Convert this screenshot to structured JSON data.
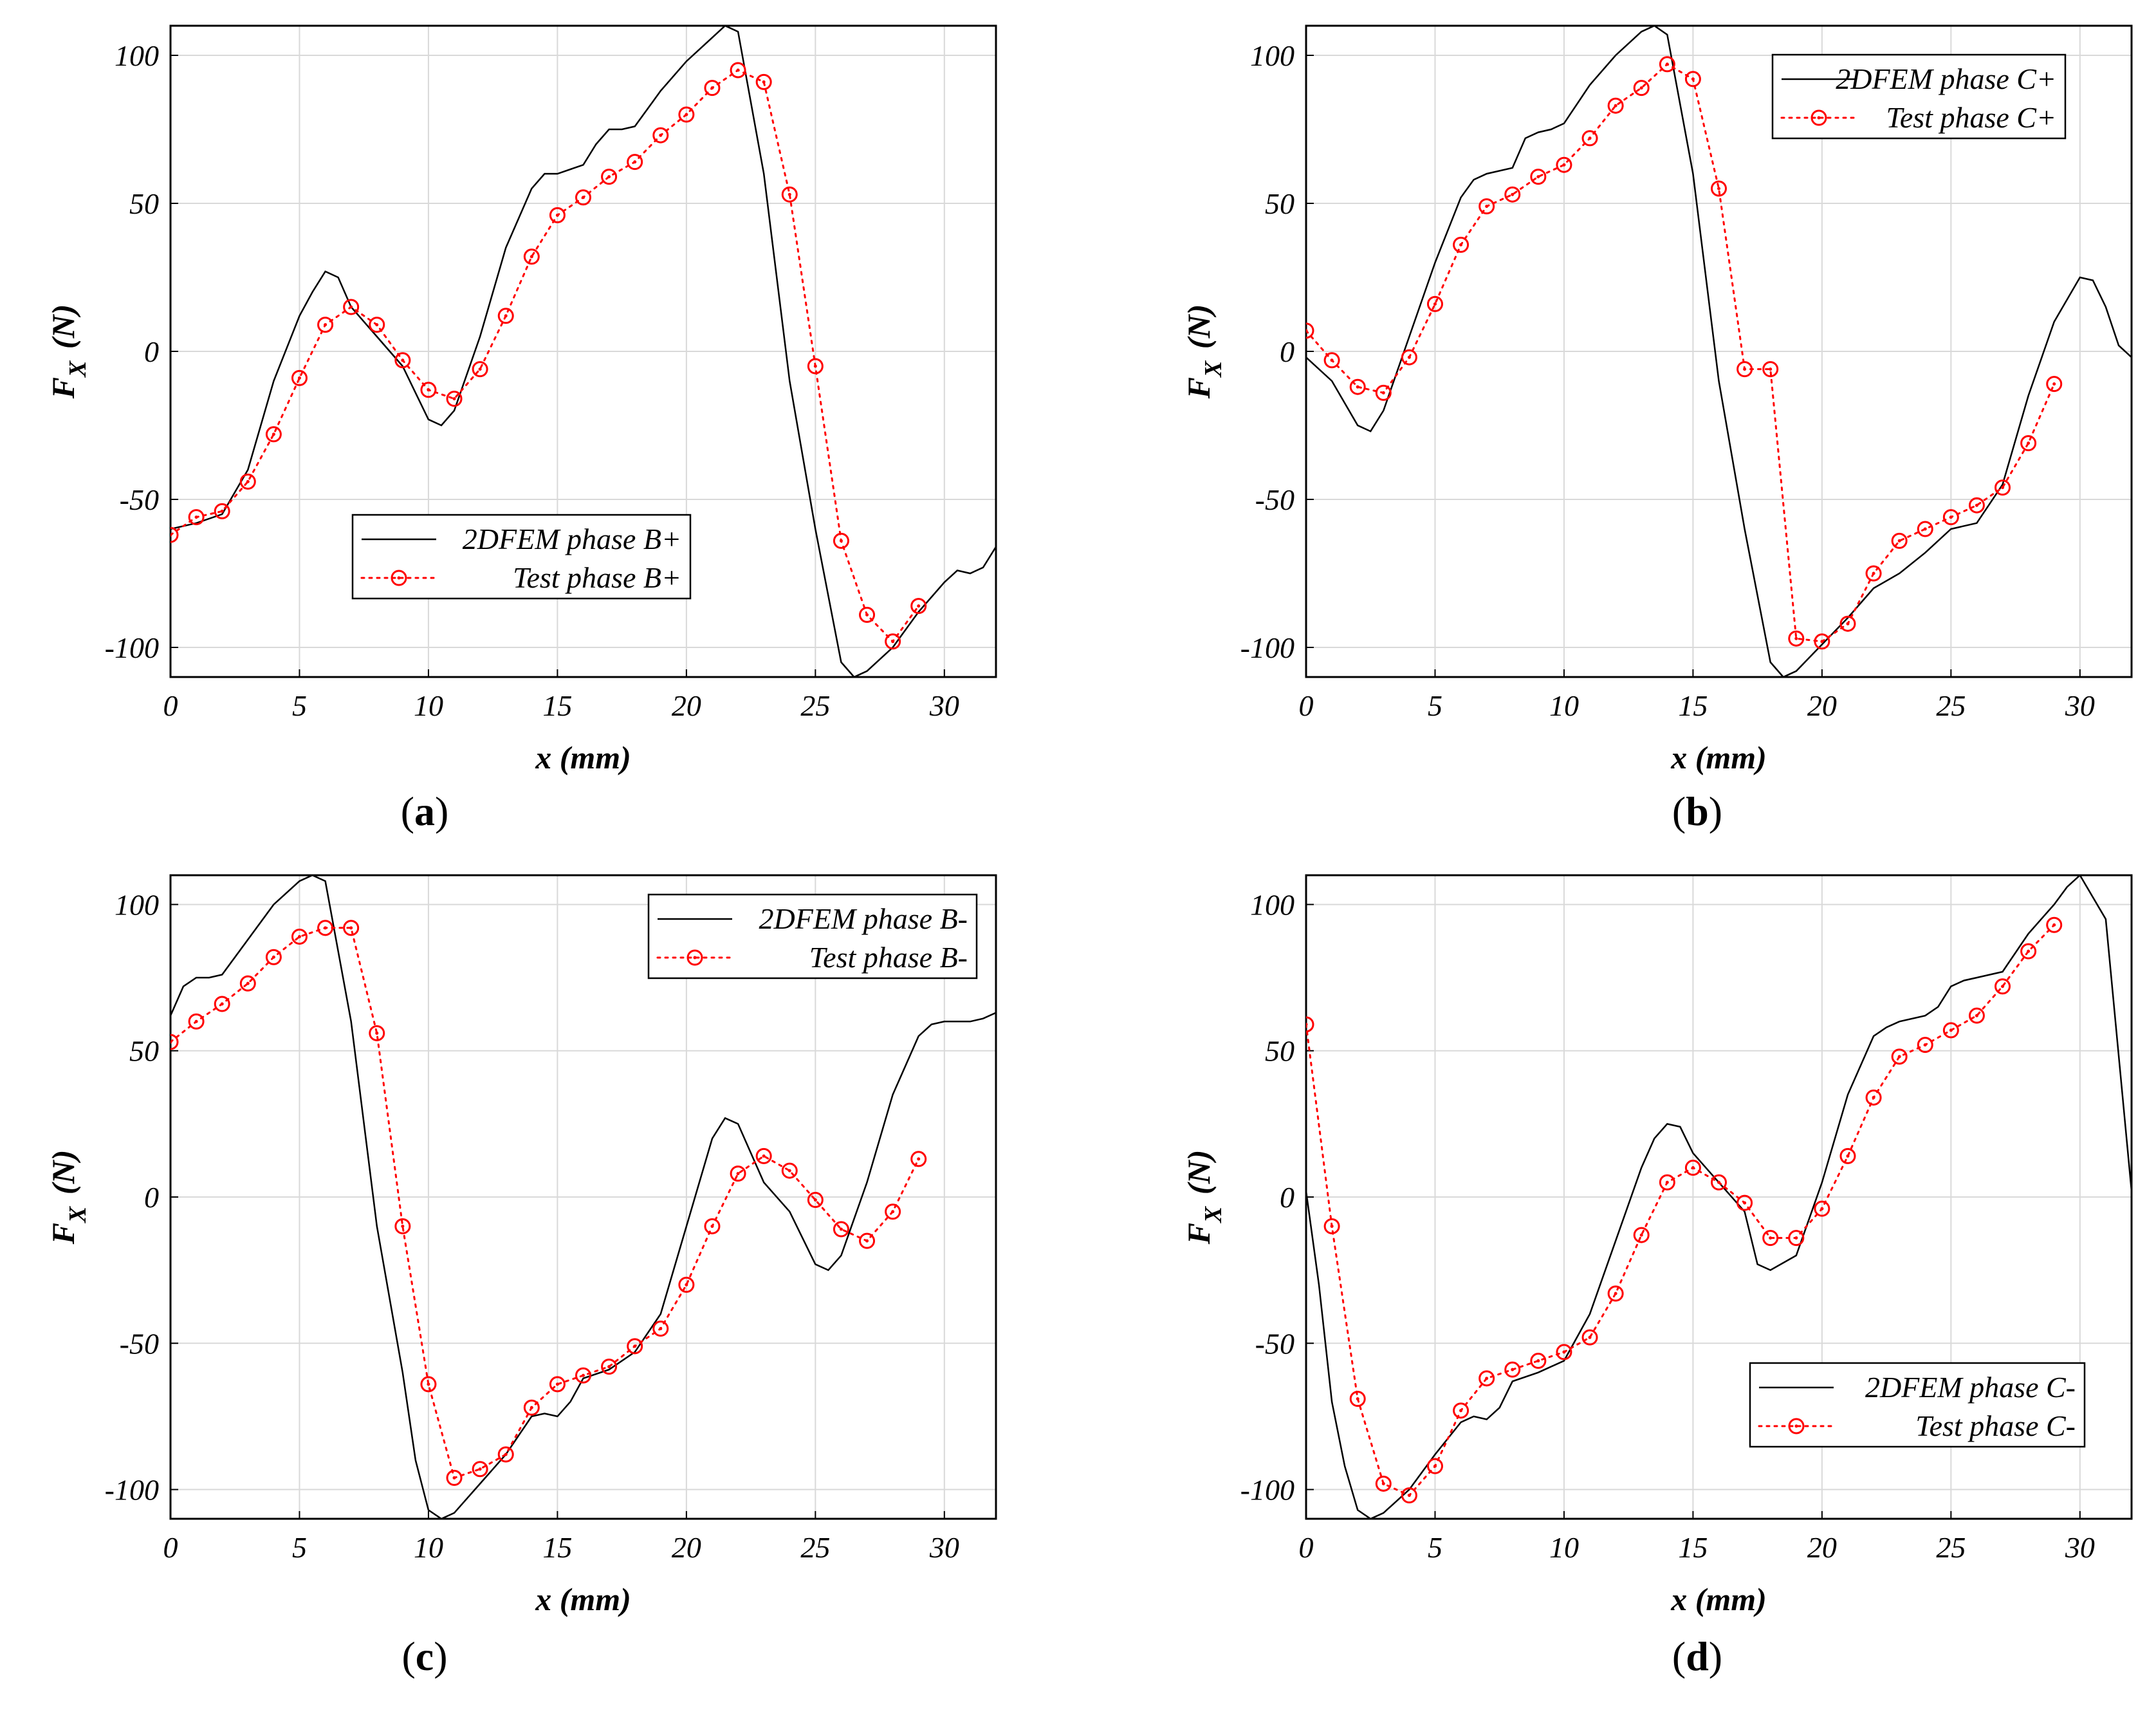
{
  "figure": {
    "width_label": "Fx vs x force comparison"
  },
  "colors": {
    "fem": "#000000",
    "test": "#ff0000",
    "grid": "#d9d9d9"
  },
  "chart_data": [
    {
      "type": "line",
      "panel_label": "(a)",
      "panel_letter": "a",
      "xlabel": "x (mm)",
      "ylabel_main": "F",
      "ylabel_sub": "X",
      "ylabel_unit": "(N)",
      "xlim": [
        0,
        32
      ],
      "ylim": [
        -110,
        110
      ],
      "xticks": [
        0,
        5,
        10,
        15,
        20,
        25,
        30
      ],
      "yticks": [
        -100,
        -50,
        0,
        50,
        100
      ],
      "ytick_labels": [
        "-100",
        "-50",
        "0",
        "50",
        "100"
      ],
      "legend_position": "lower-left-center",
      "series": [
        {
          "name": "2DFEM phase B+",
          "style": "solid",
          "x": [
            0,
            1,
            2,
            3,
            4,
            5,
            5.5,
            6,
            6.5,
            7,
            8,
            9,
            10,
            10.5,
            11,
            12,
            13,
            14,
            14.5,
            15,
            16,
            16.5,
            17,
            17.5,
            18,
            19,
            20,
            21,
            21.5,
            22,
            23,
            24,
            25,
            26,
            26.5,
            27,
            28,
            29,
            30,
            30.5,
            31,
            31.5,
            32
          ],
          "y": [
            -60,
            -58,
            -55,
            -40,
            -10,
            12,
            20,
            27,
            25,
            15,
            5,
            -5,
            -23,
            -25,
            -20,
            5,
            35,
            55,
            60,
            60,
            63,
            70,
            75,
            75,
            76,
            88,
            98,
            106,
            110,
            108,
            60,
            -10,
            -60,
            -105,
            -110,
            -108,
            -100,
            -88,
            -78,
            -74,
            -75,
            -73,
            -66
          ]
        },
        {
          "name": "Test phase B+",
          "style": "dotted-circle",
          "x": [
            0,
            1,
            2,
            3,
            4,
            5,
            6,
            7,
            8,
            9,
            10,
            11,
            12,
            13,
            14,
            15,
            16,
            17,
            18,
            19,
            20,
            21,
            22,
            23,
            24,
            25,
            26,
            27,
            28,
            29
          ],
          "y": [
            -62,
            -56,
            -54,
            -44,
            -28,
            -9,
            9,
            15,
            9,
            -3,
            -13,
            -16,
            -6,
            12,
            32,
            46,
            52,
            59,
            64,
            73,
            80,
            89,
            95,
            91,
            53,
            -5,
            -64,
            -89,
            -98,
            -86
          ]
        }
      ]
    },
    {
      "type": "line",
      "panel_label": "(b)",
      "panel_letter": "b",
      "xlabel": "x (mm)",
      "ylabel_main": "F",
      "ylabel_sub": "X",
      "ylabel_unit": "(N)",
      "xlim": [
        0,
        32
      ],
      "ylim": [
        -110,
        110
      ],
      "xticks": [
        0,
        5,
        10,
        15,
        20,
        25,
        30
      ],
      "yticks": [
        -100,
        -50,
        0,
        50,
        100
      ],
      "ytick_labels": [
        "-100",
        "-50",
        "0",
        "50",
        "100"
      ],
      "legend_position": "top-right",
      "series": [
        {
          "name": "2DFEM phase C+",
          "style": "solid",
          "x": [
            0,
            1,
            2,
            2.5,
            3,
            4,
            5,
            6,
            6.5,
            7,
            8,
            8.5,
            9,
            9.5,
            10,
            11,
            12,
            13,
            13.5,
            14,
            15,
            16,
            17,
            18,
            18.5,
            19,
            20,
            21,
            22,
            23,
            24,
            25,
            26,
            27,
            28,
            29,
            30,
            30.5,
            31,
            31.5,
            32
          ],
          "y": [
            -2,
            -10,
            -25,
            -27,
            -20,
            5,
            30,
            52,
            58,
            60,
            62,
            72,
            74,
            75,
            77,
            90,
            100,
            108,
            110,
            107,
            60,
            -10,
            -60,
            -105,
            -110,
            -108,
            -99,
            -90,
            -80,
            -75,
            -68,
            -60,
            -58,
            -45,
            -15,
            10,
            25,
            24,
            15,
            2,
            -2
          ]
        },
        {
          "name": "Test phase C+",
          "style": "dotted-circle",
          "x": [
            0,
            1,
            2,
            3,
            4,
            5,
            6,
            7,
            8,
            9,
            10,
            11,
            12,
            13,
            14,
            15,
            16,
            17,
            18,
            19,
            20,
            21,
            22,
            23,
            24,
            25,
            26,
            27,
            28,
            29
          ],
          "y": [
            7,
            -3,
            -12,
            -14,
            -2,
            16,
            36,
            49,
            53,
            59,
            63,
            72,
            83,
            89,
            97,
            92,
            55,
            -6,
            -6,
            -97,
            -98,
            -92,
            -75,
            -64,
            -60,
            -56,
            -52,
            -46,
            -31,
            -11
          ]
        }
      ]
    },
    {
      "type": "line",
      "panel_label": "(c)",
      "panel_letter": "c",
      "xlabel": "x (mm)",
      "ylabel_main": "F",
      "ylabel_sub": "X",
      "ylabel_unit": "(N)",
      "xlim": [
        0,
        32
      ],
      "ylim": [
        -110,
        110
      ],
      "xticks": [
        0,
        5,
        10,
        15,
        20,
        25,
        30
      ],
      "yticks": [
        -100,
        -50,
        0,
        50,
        100
      ],
      "ytick_labels": [
        "-100",
        "-50",
        "0",
        "50",
        "100"
      ],
      "legend_position": "top-right",
      "series": [
        {
          "name": "2DFEM phase B-",
          "style": "solid",
          "x": [
            0,
            0.5,
            1,
            1.5,
            2,
            3,
            4,
            5,
            5.5,
            6,
            7,
            8,
            9,
            9.5,
            10,
            10.5,
            11,
            12,
            13,
            14,
            14.5,
            15,
            15.5,
            16,
            17,
            18,
            19,
            20,
            21,
            21.5,
            22,
            22.5,
            23,
            24,
            25,
            25.5,
            26,
            27,
            28,
            29,
            29.5,
            30,
            31,
            31.5,
            32
          ],
          "y": [
            62,
            72,
            75,
            75,
            76,
            88,
            100,
            108,
            110,
            108,
            60,
            -10,
            -60,
            -90,
            -107,
            -110,
            -108,
            -98,
            -88,
            -75,
            -74,
            -75,
            -70,
            -62,
            -59,
            -53,
            -40,
            -10,
            20,
            27,
            25,
            15,
            5,
            -5,
            -23,
            -25,
            -20,
            5,
            35,
            55,
            59,
            60,
            60,
            61,
            63
          ]
        },
        {
          "name": "Test phase B-",
          "style": "dotted-circle",
          "x": [
            0,
            1,
            2,
            3,
            4,
            5,
            6,
            7,
            8,
            9,
            10,
            11,
            12,
            13,
            14,
            15,
            16,
            17,
            18,
            19,
            20,
            21,
            22,
            23,
            24,
            25,
            26,
            27,
            28,
            29
          ],
          "y": [
            53,
            60,
            66,
            73,
            82,
            89,
            92,
            92,
            56,
            -10,
            -64,
            -96,
            -93,
            -88,
            -72,
            -64,
            -61,
            -58,
            -51,
            -45,
            -30,
            -10,
            8,
            14,
            9,
            -1,
            -11,
            -15,
            -5,
            13
          ]
        }
      ]
    },
    {
      "type": "line",
      "panel_label": "(d)",
      "panel_letter": "d",
      "xlabel": "x (mm)",
      "ylabel_main": "F",
      "ylabel_sub": "X",
      "ylabel_unit": "(N)",
      "xlim": [
        0,
        32
      ],
      "ylim": [
        -110,
        110
      ],
      "xticks": [
        0,
        5,
        10,
        15,
        20,
        25,
        30
      ],
      "yticks": [
        -100,
        -50,
        0,
        50,
        100
      ],
      "ytick_labels": [
        "-100",
        "-50",
        "0",
        "50",
        "100"
      ],
      "legend_position": "bottom-right",
      "series": [
        {
          "name": "2DFEM phase C-",
          "style": "solid",
          "x": [
            0,
            0.5,
            1,
            1.5,
            2,
            2.5,
            3,
            4,
            5,
            6,
            6.5,
            7,
            7.5,
            8,
            9,
            10,
            11,
            12,
            13,
            13.5,
            14,
            14.5,
            15,
            16,
            17,
            17.5,
            18,
            19,
            20,
            21,
            22,
            22.5,
            23,
            24,
            24.5,
            25,
            25.5,
            26,
            27,
            28,
            29,
            29.5,
            30,
            31,
            32
          ],
          "y": [
            2,
            -30,
            -70,
            -92,
            -107,
            -110,
            -108,
            -100,
            -88,
            -77,
            -75,
            -76,
            -72,
            -63,
            -60,
            -56,
            -40,
            -15,
            10,
            20,
            25,
            24,
            15,
            5,
            -5,
            -23,
            -25,
            -20,
            5,
            35,
            55,
            58,
            60,
            62,
            65,
            72,
            74,
            75,
            77,
            90,
            100,
            106,
            110,
            95,
            2
          ]
        },
        {
          "name": "Test phase C-",
          "style": "dotted-circle",
          "x": [
            0,
            1,
            2,
            3,
            4,
            5,
            6,
            7,
            8,
            9,
            10,
            11,
            12,
            13,
            14,
            15,
            16,
            17,
            18,
            19,
            20,
            21,
            22,
            23,
            24,
            25,
            26,
            27,
            28,
            29
          ],
          "y": [
            59,
            -10,
            -69,
            -98,
            -102,
            -92,
            -73,
            -62,
            -59,
            -56,
            -53,
            -48,
            -33,
            -13,
            5,
            10,
            5,
            -2,
            -14,
            -14,
            -4,
            14,
            34,
            48,
            52,
            57,
            62,
            72,
            84,
            93
          ]
        }
      ]
    }
  ]
}
